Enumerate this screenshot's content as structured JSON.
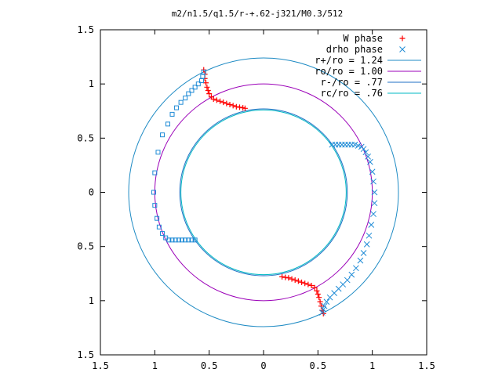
{
  "chart_data": {
    "type": "scatter",
    "title": "m2/n1.5/q1.5/r-+.62-j321/M0.3/512",
    "xlabel": "",
    "ylabel": "",
    "xlim": [
      -1.5,
      1.5
    ],
    "ylim": [
      -1.5,
      1.5
    ],
    "x_ticks": [
      {
        "value": -1.5,
        "label": "1.5"
      },
      {
        "value": -1.0,
        "label": "1"
      },
      {
        "value": -0.5,
        "label": "0.5"
      },
      {
        "value": 0.0,
        "label": "0"
      },
      {
        "value": 0.5,
        "label": "0.5"
      },
      {
        "value": 1.0,
        "label": "1"
      },
      {
        "value": 1.5,
        "label": "1.5"
      }
    ],
    "y_ticks": [
      {
        "value": 1.5,
        "label": "1.5"
      },
      {
        "value": 1.0,
        "label": "1"
      },
      {
        "value": 0.5,
        "label": "0.5"
      },
      {
        "value": 0.0,
        "label": "0"
      },
      {
        "value": -0.5,
        "label": "0.5"
      },
      {
        "value": -1.0,
        "label": "1"
      },
      {
        "value": -1.5,
        "label": "1.5"
      }
    ],
    "grid": false,
    "legend_position": "top-right",
    "circles": [
      {
        "name": "r+/ro = 1.24",
        "radius": 1.24,
        "color": "#1f8bc4"
      },
      {
        "name": "ro/ro = 1.00",
        "radius": 1.0,
        "color": "#9b00b8"
      },
      {
        "name": "r-/ro = .77",
        "radius": 0.77,
        "color": "#1f6fc4"
      },
      {
        "name": "rc/ro = .76",
        "radius": 0.76,
        "color": "#00b8c4"
      }
    ],
    "series": [
      {
        "name": "W phase",
        "marker": "plus",
        "color": "#ff0000",
        "points": [
          [
            -0.55,
            1.13
          ],
          [
            -0.54,
            1.09
          ],
          [
            -0.54,
            1.05
          ],
          [
            -0.53,
            1.01
          ],
          [
            -0.52,
            0.97
          ],
          [
            -0.51,
            0.94
          ],
          [
            -0.5,
            0.91
          ],
          [
            -0.48,
            0.88
          ],
          [
            -0.46,
            0.86
          ],
          [
            -0.43,
            0.85
          ],
          [
            -0.4,
            0.84
          ],
          [
            -0.37,
            0.83
          ],
          [
            -0.34,
            0.82
          ],
          [
            -0.31,
            0.81
          ],
          [
            -0.28,
            0.8
          ],
          [
            -0.25,
            0.79
          ],
          [
            -0.22,
            0.785
          ],
          [
            -0.19,
            0.78
          ],
          [
            -0.17,
            0.775
          ],
          [
            0.17,
            -0.78
          ],
          [
            0.2,
            -0.785
          ],
          [
            0.23,
            -0.79
          ],
          [
            0.26,
            -0.8
          ],
          [
            0.29,
            -0.81
          ],
          [
            0.32,
            -0.82
          ],
          [
            0.35,
            -0.83
          ],
          [
            0.38,
            -0.84
          ],
          [
            0.41,
            -0.85
          ],
          [
            0.44,
            -0.86
          ],
          [
            0.47,
            -0.88
          ],
          [
            0.49,
            -0.91
          ],
          [
            0.5,
            -0.94
          ],
          [
            0.51,
            -0.97
          ],
          [
            0.52,
            -1.01
          ],
          [
            0.53,
            -1.05
          ],
          [
            0.54,
            -1.09
          ],
          [
            0.55,
            -1.12
          ]
        ]
      },
      {
        "name": "drho phase",
        "marker": "x",
        "color": "#1f8bd6",
        "points": [
          [
            0.63,
            0.44
          ],
          [
            0.66,
            0.44
          ],
          [
            0.69,
            0.44
          ],
          [
            0.72,
            0.44
          ],
          [
            0.75,
            0.44
          ],
          [
            0.78,
            0.44
          ],
          [
            0.81,
            0.44
          ],
          [
            0.84,
            0.44
          ],
          [
            0.87,
            0.43
          ],
          [
            0.9,
            0.42
          ],
          [
            0.92,
            0.4
          ],
          [
            0.94,
            0.37
          ],
          [
            0.96,
            0.33
          ],
          [
            0.98,
            0.28
          ],
          [
            1.0,
            0.19
          ],
          [
            1.01,
            0.1
          ],
          [
            1.02,
            0.0
          ],
          [
            1.02,
            -0.1
          ],
          [
            1.01,
            -0.2
          ],
          [
            0.99,
            -0.3
          ],
          [
            0.97,
            -0.4
          ],
          [
            0.95,
            -0.48
          ],
          [
            0.92,
            -0.56
          ],
          [
            0.89,
            -0.63
          ],
          [
            0.85,
            -0.7
          ],
          [
            0.81,
            -0.76
          ],
          [
            0.77,
            -0.81
          ],
          [
            0.73,
            -0.85
          ],
          [
            0.69,
            -0.89
          ],
          [
            0.65,
            -0.93
          ],
          [
            0.61,
            -0.97
          ],
          [
            0.58,
            -1.01
          ],
          [
            0.56,
            -1.05
          ],
          [
            0.55,
            -1.08
          ],
          [
            0.54,
            -1.11
          ]
        ]
      },
      {
        "name": "",
        "marker": "square",
        "color": "#1f8bd6",
        "points": [
          [
            -0.55,
            1.11
          ],
          [
            -0.56,
            1.07
          ],
          [
            -0.57,
            1.03
          ],
          [
            -0.6,
            1.0
          ],
          [
            -0.63,
            0.97
          ],
          [
            -0.66,
            0.94
          ],
          [
            -0.69,
            0.91
          ],
          [
            -0.72,
            0.87
          ],
          [
            -0.76,
            0.83
          ],
          [
            -0.8,
            0.78
          ],
          [
            -0.84,
            0.72
          ],
          [
            -0.88,
            0.63
          ],
          [
            -0.93,
            0.53
          ],
          [
            -0.97,
            0.37
          ],
          [
            -1.0,
            0.18
          ],
          [
            -1.01,
            0.0
          ],
          [
            -1.0,
            -0.12
          ],
          [
            -0.98,
            -0.24
          ],
          [
            -0.96,
            -0.32
          ],
          [
            -0.93,
            -0.38
          ],
          [
            -0.9,
            -0.42
          ],
          [
            -0.87,
            -0.44
          ],
          [
            -0.84,
            -0.44
          ],
          [
            -0.81,
            -0.44
          ],
          [
            -0.78,
            -0.44
          ],
          [
            -0.75,
            -0.44
          ],
          [
            -0.72,
            -0.44
          ],
          [
            -0.69,
            -0.44
          ],
          [
            -0.66,
            -0.44
          ],
          [
            -0.63,
            -0.44
          ]
        ]
      }
    ]
  }
}
